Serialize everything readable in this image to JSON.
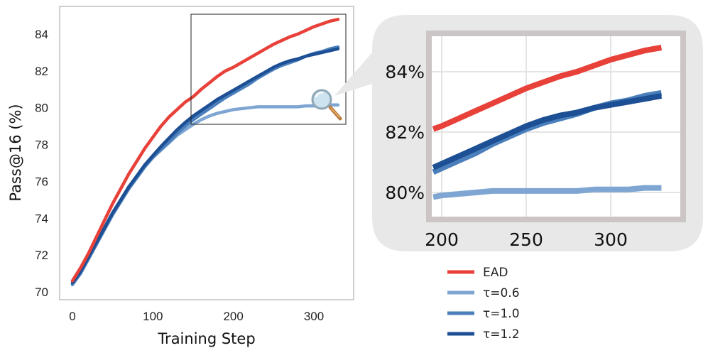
{
  "chart_data": [
    {
      "type": "line",
      "title": "",
      "xlabel": "Training Step",
      "ylabel": "Pass@16 (%)",
      "xlim": [
        -15,
        345
      ],
      "ylim": [
        69.5,
        85.5
      ],
      "xticks": [
        0,
        100,
        200,
        300
      ],
      "yticks": [
        70,
        72,
        74,
        76,
        78,
        80,
        82,
        84
      ],
      "grid": false,
      "colors": {
        "EAD": "#e8413a",
        "τ=0.6": "#7fa6d2",
        "τ=1.0": "#4a7fbb",
        "τ=1.2": "#1d4f94"
      },
      "x": [
        0,
        10,
        20,
        30,
        40,
        50,
        60,
        70,
        80,
        90,
        100,
        110,
        120,
        130,
        140,
        150,
        160,
        170,
        180,
        190,
        200,
        210,
        220,
        230,
        240,
        250,
        260,
        270,
        280,
        290,
        300,
        310,
        320,
        330
      ],
      "series": [
        {
          "name": "EAD",
          "values": [
            70.6,
            71.3,
            72.1,
            73.0,
            73.9,
            74.8,
            75.6,
            76.4,
            77.1,
            77.8,
            78.4,
            79.0,
            79.5,
            79.9,
            80.3,
            80.6,
            81.0,
            81.35,
            81.7,
            82.0,
            82.2,
            82.45,
            82.7,
            82.95,
            83.2,
            83.45,
            83.65,
            83.85,
            84.0,
            84.2,
            84.4,
            84.55,
            84.7,
            84.8
          ]
        },
        {
          "name": "τ=0.6",
          "values": [
            70.4,
            71.0,
            71.8,
            72.6,
            73.4,
            74.2,
            74.9,
            75.6,
            76.2,
            76.8,
            77.3,
            77.7,
            78.1,
            78.5,
            78.8,
            79.1,
            79.35,
            79.55,
            79.7,
            79.8,
            79.9,
            79.95,
            80.0,
            80.05,
            80.05,
            80.05,
            80.05,
            80.05,
            80.05,
            80.1,
            80.1,
            80.1,
            80.15,
            80.15
          ]
        },
        {
          "name": "τ=1.0",
          "values": [
            70.4,
            71.0,
            71.8,
            72.6,
            73.4,
            74.2,
            74.9,
            75.6,
            76.2,
            76.8,
            77.3,
            77.75,
            78.15,
            78.6,
            79.0,
            79.35,
            79.65,
            79.95,
            80.25,
            80.55,
            80.8,
            81.05,
            81.3,
            81.6,
            81.85,
            82.1,
            82.3,
            82.45,
            82.6,
            82.8,
            82.95,
            83.05,
            83.2,
            83.3
          ]
        },
        {
          "name": "τ=1.2",
          "values": [
            70.5,
            71.1,
            71.9,
            72.7,
            73.5,
            74.3,
            75.0,
            75.7,
            76.3,
            76.9,
            77.4,
            77.9,
            78.35,
            78.8,
            79.2,
            79.55,
            79.85,
            80.15,
            80.45,
            80.7,
            80.95,
            81.2,
            81.45,
            81.7,
            81.95,
            82.2,
            82.4,
            82.55,
            82.65,
            82.8,
            82.9,
            83.0,
            83.1,
            83.2
          ]
        }
      ]
    },
    {
      "type": "line",
      "title": "",
      "xlabel": "",
      "ylabel": "",
      "xlim": [
        195,
        340
      ],
      "ylim": [
        79.0,
        85.0
      ],
      "xticks": [
        "200",
        "250",
        "300"
      ],
      "yticks": [
        "80%",
        "82%",
        "84%"
      ],
      "grid": true,
      "legend": {
        "position": "bottom-right",
        "entries": [
          "EAD",
          "τ=0.6",
          "τ=1.0",
          "τ=1.2"
        ]
      }
    }
  ]
}
